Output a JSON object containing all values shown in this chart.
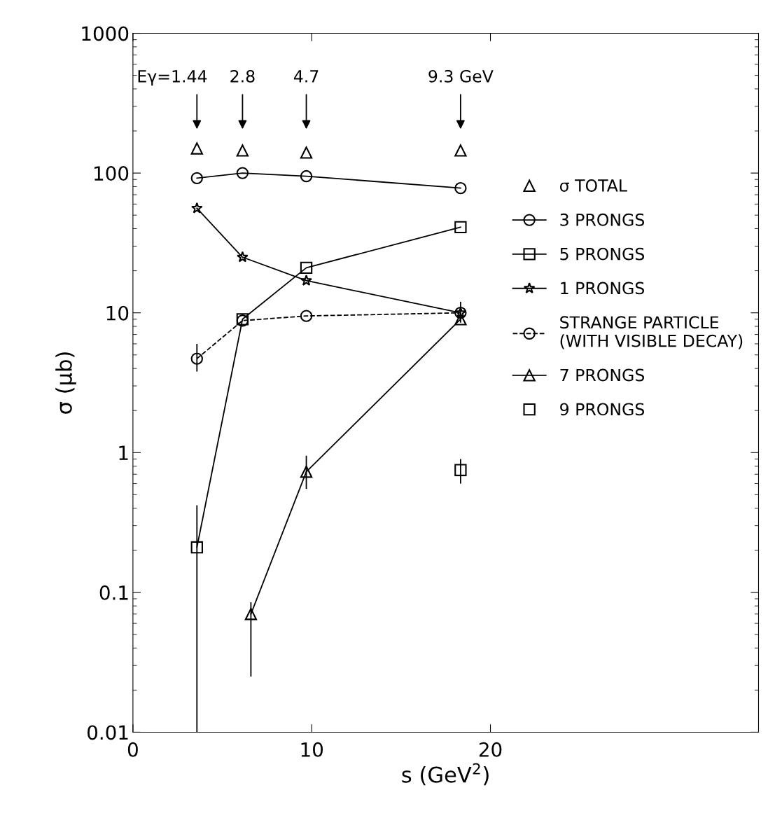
{
  "chart_data": {
    "type": "line",
    "xlabel": "s (GeV$^{2}$)",
    "ylabel": "σ (μb)",
    "log": "y",
    "grid": false,
    "legend": "right",
    "xlim": [
      0,
      35
    ],
    "xticks": [
      0,
      10,
      20
    ],
    "ylim": [
      0.01,
      1000
    ],
    "yticks": [
      0.01,
      0.1,
      1,
      10,
      100,
      1000
    ],
    "x": [
      3.58,
      6.13,
      9.7,
      18.33
    ],
    "series": [
      {
        "name": "σ TOTAL",
        "type": "scatter",
        "marker": "triangle",
        "color": "#000000",
        "values": [
          150,
          145,
          140,
          145
        ]
      },
      {
        "name": "3 PRONGS",
        "marker": "circle",
        "line_style": "solid",
        "color": "#000000",
        "values": [
          92,
          100,
          95,
          78
        ]
      },
      {
        "name": "5 PRONGS",
        "marker": "square",
        "line_style": "solid",
        "color": "#000000",
        "values": [
          0.21,
          9.0,
          21,
          41
        ],
        "errors": [
          [
            0.01,
            0.42
          ],
          null,
          null,
          null
        ]
      },
      {
        "name": "1 PRONGS",
        "marker": "star",
        "line_style": "solid",
        "color": "#000000",
        "values": [
          56,
          25,
          17,
          10
        ]
      },
      {
        "name": "STRANGE PARTICLE\n(WITH VISIBLE DECAY)",
        "marker": "circle",
        "line_style": "dashed",
        "color": "#000000",
        "values": [
          4.7,
          8.8,
          9.5,
          10
        ],
        "errors": [
          [
            3.8,
            6.0
          ],
          null,
          null,
          [
            8.5,
            12
          ]
        ]
      },
      {
        "name": "7 PRONGS",
        "marker": "triangle",
        "line_style": "solid",
        "color": "#000000",
        "x": [
          6.6,
          9.7,
          18.33
        ],
        "values": [
          0.07,
          0.73,
          9
        ],
        "errors": [
          [
            0.025,
            0.085
          ],
          [
            0.55,
            0.95
          ],
          null
        ]
      },
      {
        "name": "9 PRONGS",
        "type": "scatter",
        "marker": "square",
        "color": "#000000",
        "x": [
          18.33
        ],
        "values": [
          0.75
        ],
        "errors": [
          [
            0.6,
            0.9
          ]
        ]
      }
    ],
    "annotations": [
      "Eγ=1.44",
      "2.8",
      "4.7",
      "9.3 GeV"
    ]
  }
}
